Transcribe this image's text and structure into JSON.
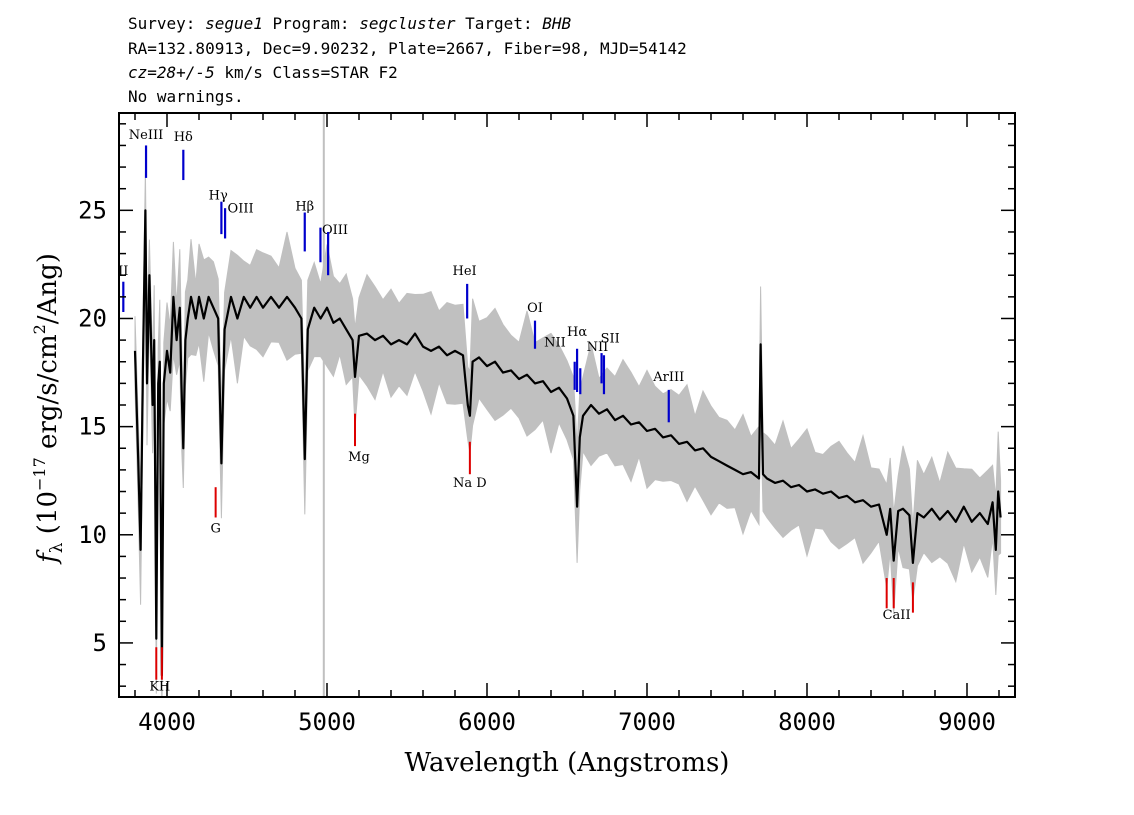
{
  "header": {
    "line1_parts": [
      {
        "t": "Survey: ",
        "i": false
      },
      {
        "t": "segue1",
        "i": true
      },
      {
        "t": " Program: ",
        "i": false
      },
      {
        "t": "segcluster",
        "i": true
      },
      {
        "t": " Target: ",
        "i": false
      },
      {
        "t": "BHB",
        "i": true
      }
    ],
    "line2": "RA=132.80913, Dec=9.90232, Plate=2667, Fiber=98, MJD=54142",
    "line3_parts": [
      {
        "t": "cz=28+/-5",
        "i": true
      },
      {
        "t": " km/s Class=STAR F2",
        "i": false
      }
    ],
    "line4": "No warnings."
  },
  "chart_data": {
    "type": "line",
    "xlabel": "Wavelength (Angstroms)",
    "ylabel_parts": {
      "f": "f",
      "sub": "λ",
      "a": " (10",
      "exp": "−17",
      "b": " erg/s/cm",
      "exp2": "2",
      "c": "/Ang)"
    },
    "xlim": [
      3700,
      9300
    ],
    "ylim": [
      2.5,
      29.5
    ],
    "xticks": [
      4000,
      5000,
      6000,
      7000,
      8000,
      9000
    ],
    "yticks": [
      5,
      10,
      15,
      20,
      25
    ],
    "vertical_marker_x": 4980,
    "colors": {
      "flux": "#000000",
      "error_band": "#c0c0c0",
      "emission": "#0000cc",
      "absorption": "#dd0000",
      "marker": "#c0c0c0"
    },
    "series": [
      {
        "role": "smoothed flux",
        "points": [
          [
            3800,
            18.5
          ],
          [
            3820,
            13.5
          ],
          [
            3835,
            9.3
          ],
          [
            3850,
            18
          ],
          [
            3865,
            25
          ],
          [
            3875,
            17
          ],
          [
            3890,
            22
          ],
          [
            3900,
            19
          ],
          [
            3910,
            16
          ],
          [
            3920,
            19
          ],
          [
            3933,
            5.2
          ],
          [
            3945,
            17
          ],
          [
            3955,
            18
          ],
          [
            3968,
            3.5
          ],
          [
            3980,
            17
          ],
          [
            4000,
            18.5
          ],
          [
            4020,
            17.5
          ],
          [
            4040,
            21
          ],
          [
            4060,
            19
          ],
          [
            4080,
            20.5
          ],
          [
            4090,
            17
          ],
          [
            4102,
            14
          ],
          [
            4115,
            19
          ],
          [
            4130,
            20
          ],
          [
            4150,
            21
          ],
          [
            4180,
            20
          ],
          [
            4200,
            21
          ],
          [
            4230,
            20
          ],
          [
            4260,
            21
          ],
          [
            4290,
            20.5
          ],
          [
            4320,
            20
          ],
          [
            4340,
            13.3
          ],
          [
            4360,
            19.5
          ],
          [
            4400,
            21
          ],
          [
            4440,
            20
          ],
          [
            4480,
            21
          ],
          [
            4520,
            20.5
          ],
          [
            4560,
            21
          ],
          [
            4600,
            20.5
          ],
          [
            4650,
            21
          ],
          [
            4700,
            20.5
          ],
          [
            4750,
            21
          ],
          [
            4800,
            20.5
          ],
          [
            4840,
            20
          ],
          [
            4861,
            13.5
          ],
          [
            4880,
            19.5
          ],
          [
            4920,
            20.5
          ],
          [
            4960,
            20
          ],
          [
            5000,
            20.5
          ],
          [
            5040,
            19.8
          ],
          [
            5080,
            20
          ],
          [
            5120,
            19.5
          ],
          [
            5160,
            19
          ],
          [
            5175,
            17.3
          ],
          [
            5200,
            19.2
          ],
          [
            5250,
            19.3
          ],
          [
            5300,
            19
          ],
          [
            5350,
            19.2
          ],
          [
            5400,
            18.8
          ],
          [
            5450,
            19
          ],
          [
            5500,
            18.8
          ],
          [
            5550,
            19.3
          ],
          [
            5600,
            18.7
          ],
          [
            5650,
            18.5
          ],
          [
            5700,
            18.7
          ],
          [
            5750,
            18.3
          ],
          [
            5800,
            18.5
          ],
          [
            5850,
            18.3
          ],
          [
            5880,
            16
          ],
          [
            5893,
            15.5
          ],
          [
            5910,
            18
          ],
          [
            5950,
            18.2
          ],
          [
            6000,
            17.8
          ],
          [
            6050,
            18
          ],
          [
            6100,
            17.5
          ],
          [
            6150,
            17.6
          ],
          [
            6200,
            17.2
          ],
          [
            6250,
            17.4
          ],
          [
            6300,
            17
          ],
          [
            6350,
            17.1
          ],
          [
            6400,
            16.6
          ],
          [
            6450,
            16.8
          ],
          [
            6500,
            16.3
          ],
          [
            6540,
            15.5
          ],
          [
            6563,
            11.3
          ],
          [
            6580,
            14.5
          ],
          [
            6600,
            15.5
          ],
          [
            6650,
            16
          ],
          [
            6700,
            15.6
          ],
          [
            6750,
            15.8
          ],
          [
            6800,
            15.3
          ],
          [
            6850,
            15.5
          ],
          [
            6900,
            15.1
          ],
          [
            6950,
            15.2
          ],
          [
            7000,
            14.8
          ],
          [
            7050,
            14.9
          ],
          [
            7100,
            14.5
          ],
          [
            7150,
            14.6
          ],
          [
            7200,
            14.2
          ],
          [
            7250,
            14.3
          ],
          [
            7300,
            13.9
          ],
          [
            7350,
            14
          ],
          [
            7400,
            13.6
          ],
          [
            7450,
            13.4
          ],
          [
            7500,
            13.2
          ],
          [
            7550,
            13
          ],
          [
            7600,
            12.8
          ],
          [
            7650,
            12.9
          ],
          [
            7700,
            12.6
          ],
          [
            7710,
            18.8
          ],
          [
            7725,
            12.8
          ],
          [
            7750,
            12.6
          ],
          [
            7800,
            12.4
          ],
          [
            7850,
            12.5
          ],
          [
            7900,
            12.2
          ],
          [
            7950,
            12.3
          ],
          [
            8000,
            12
          ],
          [
            8050,
            12.1
          ],
          [
            8100,
            11.9
          ],
          [
            8150,
            12
          ],
          [
            8200,
            11.7
          ],
          [
            8250,
            11.8
          ],
          [
            8300,
            11.5
          ],
          [
            8350,
            11.6
          ],
          [
            8400,
            11.3
          ],
          [
            8450,
            11.4
          ],
          [
            8498,
            10
          ],
          [
            8520,
            11.2
          ],
          [
            8542,
            8.8
          ],
          [
            8570,
            11.1
          ],
          [
            8600,
            11.2
          ],
          [
            8640,
            10.9
          ],
          [
            8662,
            8.7
          ],
          [
            8690,
            11
          ],
          [
            8730,
            10.8
          ],
          [
            8780,
            11.2
          ],
          [
            8830,
            10.7
          ],
          [
            8880,
            11.1
          ],
          [
            8930,
            10.6
          ],
          [
            8980,
            11.3
          ],
          [
            9030,
            10.6
          ],
          [
            9080,
            11
          ],
          [
            9130,
            10.5
          ],
          [
            9160,
            11.5
          ],
          [
            9180,
            9.3
          ],
          [
            9195,
            12
          ],
          [
            9210,
            10.8
          ]
        ]
      }
    ],
    "lines": [
      {
        "label": "NeIII",
        "x": 3869,
        "kind": "emission",
        "y1": 26.5,
        "y2": 28,
        "lx": 3869,
        "ly": 28.3
      },
      {
        "label": "Hδ",
        "x": 4102,
        "kind": "emission",
        "y1": 26.4,
        "y2": 27.8,
        "lx": 4102,
        "ly": 28.2
      },
      {
        "label": "Hγ",
        "x": 4340,
        "kind": "emission",
        "y1": 23.9,
        "y2": 25.4,
        "lx": 4320,
        "ly": 25.5
      },
      {
        "label": "OIII",
        "x": 4363,
        "kind": "emission",
        "y1": 23.7,
        "y2": 25.1,
        "lx": 4460,
        "ly": 24.9
      },
      {
        "label": "Hβ",
        "x": 4861,
        "kind": "emission",
        "y1": 23.1,
        "y2": 24.9,
        "lx": 4861,
        "ly": 25
      },
      {
        "label": "OIII",
        "x": 4959,
        "kind": "emission",
        "y1": 22.6,
        "y2": 24.2,
        "lx": 5050,
        "ly": 23.9
      },
      {
        "label": "OIII",
        "x": 5007,
        "kind": "emission",
        "y1": 22,
        "y2": 24,
        "lx": -1,
        "ly": -1
      },
      {
        "label": "II",
        "x": 3727,
        "kind": "emission",
        "y1": 20.3,
        "y2": 21.7,
        "lx": 3727,
        "ly": 22
      },
      {
        "label": "HeI",
        "x": 5876,
        "kind": "emission",
        "y1": 20,
        "y2": 21.6,
        "lx": 5860,
        "ly": 22
      },
      {
        "label": "OI",
        "x": 6300,
        "kind": "emission",
        "y1": 18.6,
        "y2": 19.9,
        "lx": 6300,
        "ly": 20.3
      },
      {
        "label": "NII",
        "x": 6548,
        "kind": "emission",
        "y1": 16.7,
        "y2": 18,
        "lx": 6425,
        "ly": 18.7
      },
      {
        "label": "Hα",
        "x": 6563,
        "kind": "emission",
        "y1": 16.6,
        "y2": 18.6,
        "lx": 6563,
        "ly": 19.2
      },
      {
        "label": "NII",
        "x": 6583,
        "kind": "emission",
        "y1": 16.5,
        "y2": 17.7,
        "lx": -1,
        "ly": -1
      },
      {
        "label": "SII",
        "x": 6716,
        "kind": "emission",
        "y1": 17,
        "y2": 18.4,
        "lx": 6770,
        "ly": 18.9
      },
      {
        "label": "NII",
        "x": 6731,
        "kind": "emission",
        "y1": 16.5,
        "y2": 18.3,
        "lx": 6690,
        "ly": 18.5
      },
      {
        "label": "ArIII",
        "x": 7136,
        "kind": "emission",
        "y1": 15.2,
        "y2": 16.7,
        "lx": 7136,
        "ly": 17.1
      },
      {
        "label": "K",
        "x": 3933,
        "kind": "absorption",
        "y1": 3.3,
        "y2": 4.8,
        "lx": 3920,
        "ly": 2.8
      },
      {
        "label": "H",
        "x": 3968,
        "kind": "absorption",
        "y1": 3.3,
        "y2": 4.8,
        "lx": 3985,
        "ly": 2.8
      },
      {
        "label": "G",
        "x": 4304,
        "kind": "absorption",
        "y1": 10.8,
        "y2": 12.2,
        "lx": 4304,
        "ly": 10.1
      },
      {
        "label": "Mg",
        "x": 5175,
        "kind": "absorption",
        "y1": 14.1,
        "y2": 15.6,
        "lx": 5200,
        "ly": 13.4
      },
      {
        "label": "Na D",
        "x": 5893,
        "kind": "absorption",
        "y1": 12.8,
        "y2": 14.3,
        "lx": 5893,
        "ly": 12.2
      },
      {
        "label": "CaII",
        "x": 8498,
        "kind": "absorption",
        "y1": 6.6,
        "y2": 8,
        "lx": -1,
        "ly": -1
      },
      {
        "label": "CaII",
        "x": 8542,
        "kind": "absorption",
        "y1": 6.6,
        "y2": 8,
        "lx": 8560,
        "ly": 6.1
      },
      {
        "label": "CaII",
        "x": 8662,
        "kind": "absorption",
        "y1": 6.4,
        "y2": 7.8,
        "lx": -1,
        "ly": -1
      }
    ]
  }
}
